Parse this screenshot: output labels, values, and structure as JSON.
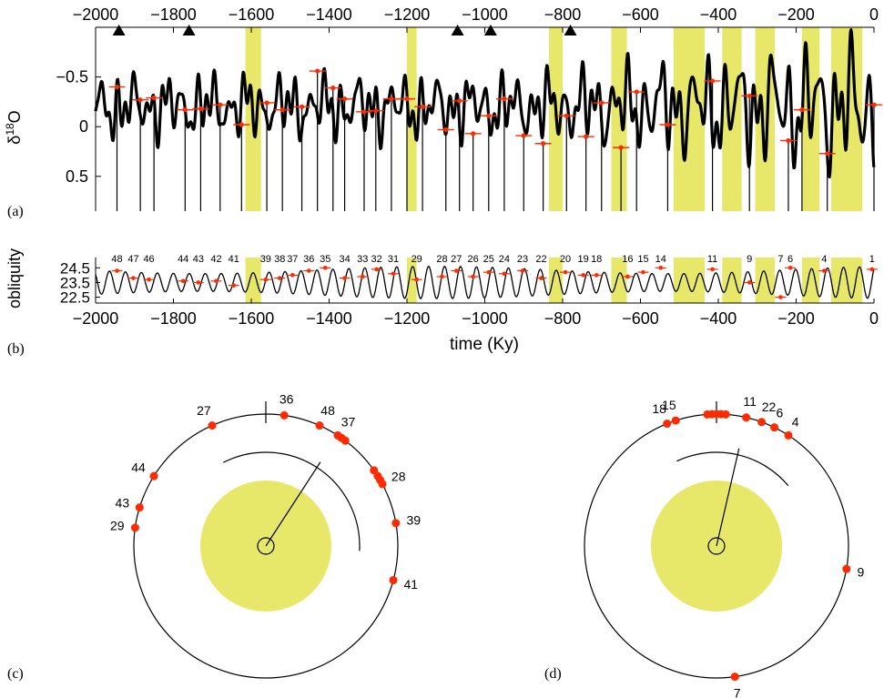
{
  "colors": {
    "band": "#e7e86a",
    "curve": "#000000",
    "marker": "#ff2a00"
  },
  "labels": {
    "panel_a": "(a)",
    "panel_b": "(b)",
    "panel_c": "(c)",
    "panel_d": "(d)"
  },
  "chart_data": [
    {
      "id": "a",
      "type": "line",
      "ylabel": "δ18O",
      "ylabel_main": "δ",
      "ylabel_sup": "18",
      "ylabel_tail": "O",
      "xlim": [
        -2000,
        0
      ],
      "ylim": [
        0.85,
        -1.0
      ],
      "y_inverted": true,
      "x_ticks": [
        -2000,
        -1800,
        -1600,
        -1400,
        -1200,
        -1000,
        -800,
        -600,
        -400,
        -200,
        0
      ],
      "x_tick_labels": [
        "−2000",
        "−1800",
        "−1600",
        "−1400",
        "−1200",
        "−1000",
        "−800",
        "−600",
        "−400",
        "−200",
        "0"
      ],
      "y_ticks": [
        -0.5,
        0,
        0.5
      ],
      "y_tick_labels": [
        "−0.5",
        "0",
        "0.5"
      ],
      "triangles": [
        -1940,
        -1760,
        -1070,
        -985,
        -780
      ],
      "bands": [
        [
          -1615,
          -1575
        ],
        [
          -1200,
          -1175
        ],
        [
          -835,
          -800
        ],
        [
          -675,
          -635
        ],
        [
          -515,
          -435
        ],
        [
          -390,
          -340
        ],
        [
          -305,
          -255
        ],
        [
          -185,
          -140
        ],
        [
          -110,
          -30
        ]
      ],
      "terminations": [
        {
          "x": -1945,
          "y": -0.4
        },
        {
          "x": -1885,
          "y": -0.27
        },
        {
          "x": -1850,
          "y": -0.29
        },
        {
          "x": -1770,
          "y": -0.17
        },
        {
          "x": -1730,
          "y": -0.18
        },
        {
          "x": -1680,
          "y": -0.22
        },
        {
          "x": -1625,
          "y": -0.02
        },
        {
          "x": -1560,
          "y": -0.24
        },
        {
          "x": -1520,
          "y": -0.17
        },
        {
          "x": -1470,
          "y": -0.2
        },
        {
          "x": -1430,
          "y": -0.56
        },
        {
          "x": -1390,
          "y": -0.39
        },
        {
          "x": -1360,
          "y": -0.28
        },
        {
          "x": -1310,
          "y": -0.15
        },
        {
          "x": -1280,
          "y": -0.16
        },
        {
          "x": -1240,
          "y": -0.28
        },
        {
          "x": -1200,
          "y": -0.28
        },
        {
          "x": -1160,
          "y": -0.2
        },
        {
          "x": -1100,
          "y": 0.03
        },
        {
          "x": -1065,
          "y": -0.26
        },
        {
          "x": -1030,
          "y": 0.07
        },
        {
          "x": -990,
          "y": -0.11
        },
        {
          "x": -950,
          "y": -0.28
        },
        {
          "x": -900,
          "y": 0.09
        },
        {
          "x": -850,
          "y": 0.17
        },
        {
          "x": -790,
          "y": -0.11
        },
        {
          "x": -740,
          "y": 0.1
        },
        {
          "x": -700,
          "y": -0.24
        },
        {
          "x": -650,
          "y": 0.21
        },
        {
          "x": -610,
          "y": -0.35
        },
        {
          "x": -530,
          "y": -0.02
        },
        {
          "x": -415,
          "y": -0.46
        },
        {
          "x": -320,
          "y": -0.31
        },
        {
          "x": -220,
          "y": 0.14
        },
        {
          "x": -185,
          "y": -0.17
        },
        {
          "x": -120,
          "y": 0.27
        },
        {
          "x": 0,
          "y": -0.22
        }
      ]
    },
    {
      "id": "b",
      "type": "line",
      "ylabel": "obliquity",
      "xlabel": "time (Ky)",
      "xlim": [
        -2000,
        0
      ],
      "ylim": [
        22.1,
        25.2
      ],
      "x_ticks": [
        -2000,
        -1800,
        -1600,
        -1400,
        -1200,
        -1000,
        -800,
        -600,
        -400,
        -200,
        0
      ],
      "x_tick_labels": [
        "−2000",
        "−1800",
        "−1600",
        "−1400",
        "−1200",
        "−1000",
        "−800",
        "−600",
        "−400",
        "−200",
        "0"
      ],
      "y_ticks": [
        24.5,
        23.5,
        22.5
      ],
      "y_tick_labels": [
        "24.5",
        "23.5",
        "22.5"
      ],
      "cycles": [
        {
          "label": "48",
          "x": -1945,
          "y": 24.3
        },
        {
          "label": "47",
          "x": -1903,
          "y": 23.8
        },
        {
          "label": "46",
          "x": -1863,
          "y": 23.7
        },
        {
          "label": "44",
          "x": -1775,
          "y": 23.6
        },
        {
          "label": "43",
          "x": -1736,
          "y": 23.5
        },
        {
          "label": "42",
          "x": -1690,
          "y": 23.6
        },
        {
          "label": "41",
          "x": -1645,
          "y": 23.3
        },
        {
          "label": "39",
          "x": -1563,
          "y": 23.7
        },
        {
          "label": "38",
          "x": -1527,
          "y": 23.8
        },
        {
          "label": "37",
          "x": -1494,
          "y": 24.0
        },
        {
          "label": "36",
          "x": -1452,
          "y": 24.3
        },
        {
          "label": "35",
          "x": -1410,
          "y": 24.5
        },
        {
          "label": "34",
          "x": -1360,
          "y": 23.8
        },
        {
          "label": "33",
          "x": -1314,
          "y": 23.9
        },
        {
          "label": "32",
          "x": -1278,
          "y": 24.4
        },
        {
          "label": "31",
          "x": -1235,
          "y": 24.1
        },
        {
          "label": "29",
          "x": -1175,
          "y": 23.7
        },
        {
          "label": "28",
          "x": -1110,
          "y": 23.9
        },
        {
          "label": "27",
          "x": -1073,
          "y": 24.3
        },
        {
          "label": "26",
          "x": -1030,
          "y": 23.9
        },
        {
          "label": "25",
          "x": -990,
          "y": 24.2
        },
        {
          "label": "24",
          "x": -950,
          "y": 24.1
        },
        {
          "label": "23",
          "x": -903,
          "y": 24.3
        },
        {
          "label": "22",
          "x": -855,
          "y": 23.8
        },
        {
          "label": "20",
          "x": -793,
          "y": 24.2
        },
        {
          "label": "19",
          "x": -747,
          "y": 24.0
        },
        {
          "label": "18",
          "x": -713,
          "y": 24.0
        },
        {
          "label": "16",
          "x": -633,
          "y": 23.9
        },
        {
          "label": "15",
          "x": -593,
          "y": 24.2
        },
        {
          "label": "14",
          "x": -548,
          "y": 24.5
        },
        {
          "label": "11",
          "x": -415,
          "y": 24.4
        },
        {
          "label": "9",
          "x": -320,
          "y": 23.5
        },
        {
          "label": "7",
          "x": -240,
          "y": 22.5
        },
        {
          "label": "6",
          "x": -215,
          "y": 24.5
        },
        {
          "label": "4",
          "x": -128,
          "y": 24.3
        },
        {
          "label": "1",
          "x": -5,
          "y": 24.4
        }
      ]
    },
    {
      "id": "c",
      "type": "scatter",
      "subtype": "phase-dial",
      "points": [
        {
          "label": "27",
          "angle": -24
        },
        {
          "label": "36",
          "angle": 8
        },
        {
          "label": "48",
          "angle": 24
        },
        {
          "label": "37",
          "angle": 33
        },
        {
          "label": "",
          "angle": 35
        },
        {
          "label": "",
          "angle": 37
        },
        {
          "label": "",
          "angle": 55
        },
        {
          "label": "",
          "angle": 58
        },
        {
          "label": "",
          "angle": 60
        },
        {
          "label": "28",
          "angle": 62
        },
        {
          "label": "39",
          "angle": 80
        },
        {
          "label": "41",
          "angle": 105
        },
        {
          "label": "44",
          "angle": -58
        },
        {
          "label": "43",
          "angle": -73
        },
        {
          "label": "29",
          "angle": -82
        }
      ],
      "mean_angle": 33,
      "arc_start": -27,
      "arc_end": 93
    },
    {
      "id": "d",
      "type": "scatter",
      "subtype": "phase-dial",
      "points": [
        {
          "label": "18",
          "angle": -22
        },
        {
          "label": "15",
          "angle": -18
        },
        {
          "label": "",
          "angle": -4
        },
        {
          "label": "",
          "angle": -2
        },
        {
          "label": "",
          "angle": 0
        },
        {
          "label": "",
          "angle": 2
        },
        {
          "label": "",
          "angle": 4
        },
        {
          "label": "11",
          "angle": 13
        },
        {
          "label": "22",
          "angle": 20
        },
        {
          "label": "6",
          "angle": 26
        },
        {
          "label": "4",
          "angle": 33
        },
        {
          "label": "9",
          "angle": 100
        },
        {
          "label": "7",
          "angle": 172
        }
      ],
      "mean_angle": 13,
      "arc_start": -25,
      "arc_end": 50
    }
  ]
}
